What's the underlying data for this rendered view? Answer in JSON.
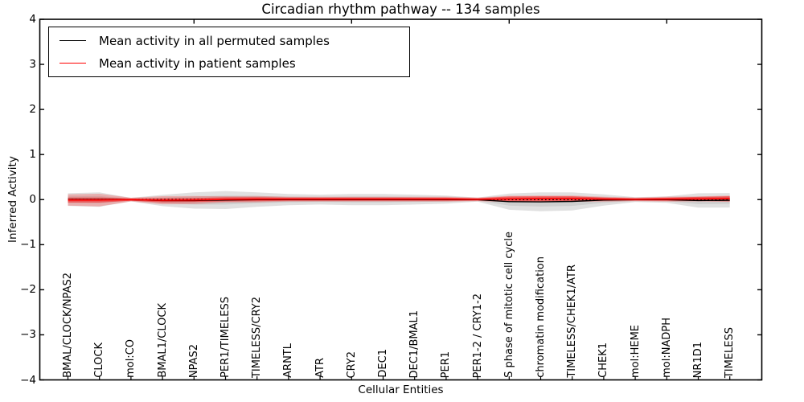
{
  "figure": {
    "title": "Circadian rhythm pathway -- 134 samples",
    "xlabel": "Cellular Entities",
    "ylabel": "Inferred Activity"
  },
  "legend": {
    "position": "upper left",
    "items": [
      {
        "label": "Mean activity in all permuted samples",
        "color": "#000000"
      },
      {
        "label": "Mean activity in patient samples",
        "color": "#ff0000"
      }
    ]
  },
  "axes": {
    "y_tick_labels": [
      "4",
      "3",
      "2",
      "1",
      "0",
      "−1",
      "−2",
      "−3",
      "−4"
    ],
    "x_major_top_tick_indices": [
      4,
      9,
      14,
      19
    ]
  },
  "chart_data": {
    "type": "line",
    "title": "Circadian rhythm pathway -- 134 samples",
    "xlabel": "Cellular Entities",
    "ylabel": "Inferred Activity",
    "ylim": [
      -4,
      4
    ],
    "grid": false,
    "legend_position": "upper left",
    "categories": [
      "BMAL/CLOCK/NPAS2",
      "CLOCK",
      "mol:CO",
      "BMAL1/CLOCK",
      "NPAS2",
      "PER1/TIMELESS",
      "TIMELESS/CRY2",
      "ARNTL",
      "ATR",
      "CRY2",
      "DEC1",
      "DEC1/BMAL1",
      "PER1",
      "PER1-2 / CRY1-2",
      "S phase of mitotic cell cycle",
      "chromatin modification",
      "TIMELESS/CHEK1/ATR",
      "CHEK1",
      "mol:HEME",
      "mol:NADPH",
      "NR1D1",
      "TIMELESS"
    ],
    "series": [
      {
        "name": "Mean activity in all permuted samples",
        "color": "#000000",
        "style": "solid",
        "values": [
          0,
          0,
          0,
          -0.02,
          -0.02,
          -0.01,
          0,
          0,
          0,
          0,
          0,
          0,
          0,
          0,
          -0.045,
          -0.05,
          -0.04,
          -0.01,
          0,
          0,
          -0.02,
          -0.015
        ]
      },
      {
        "name": "Mean activity in patient samples",
        "color": "#ff0000",
        "style": "solid",
        "values": [
          -0.01,
          -0.01,
          0,
          -0.015,
          -0.01,
          0.005,
          0.01,
          0.01,
          0.01,
          0.01,
          0.01,
          0.01,
          0.01,
          0.005,
          0.015,
          0.02,
          0.02,
          0.01,
          0.005,
          0.01,
          0.015,
          0.02
        ]
      }
    ],
    "zero_reference_line": {
      "value": 0,
      "color": "#000000",
      "style": "dotted"
    },
    "bands": [
      {
        "name": "permuted-spread-outer",
        "center_series": 0,
        "color": "#000000",
        "opacity": 0.12,
        "half_widths": [
          0.14,
          0.16,
          0.04,
          0.125,
          0.18,
          0.2,
          0.16,
          0.125,
          0.11,
          0.125,
          0.125,
          0.11,
          0.09,
          0.045,
          0.18,
          0.21,
          0.2,
          0.125,
          0.055,
          0.07,
          0.16,
          0.16
        ]
      },
      {
        "name": "permuted-spread-inner",
        "center_series": 0,
        "color": "#000000",
        "opacity": 0.08,
        "half_widths": [
          0.07,
          0.08,
          0.02,
          0.063,
          0.09,
          0.1,
          0.08,
          0.063,
          0.055,
          0.063,
          0.063,
          0.055,
          0.045,
          0.023,
          0.09,
          0.105,
          0.1,
          0.063,
          0.028,
          0.035,
          0.08,
          0.08
        ]
      },
      {
        "name": "patient-spread-outer",
        "center_series": 1,
        "color": "#ff0000",
        "opacity": 0.22,
        "half_widths": [
          0.125,
          0.14,
          0.04,
          0.09,
          0.09,
          0.07,
          0.07,
          0.055,
          0.055,
          0.055,
          0.055,
          0.055,
          0.055,
          0.04,
          0.07,
          0.07,
          0.07,
          0.055,
          0.04,
          0.055,
          0.055,
          0.07
        ]
      },
      {
        "name": "patient-spread-core",
        "center_series": 1,
        "color": "#ff0000",
        "opacity": 0.45,
        "half_widths": [
          0.055,
          0.055,
          0.027,
          0.045,
          0.045,
          0.045,
          0.045,
          0.036,
          0.036,
          0.036,
          0.036,
          0.036,
          0.036,
          0.027,
          0.054,
          0.054,
          0.054,
          0.036,
          0.027,
          0.036,
          0.045,
          0.054
        ]
      }
    ]
  }
}
